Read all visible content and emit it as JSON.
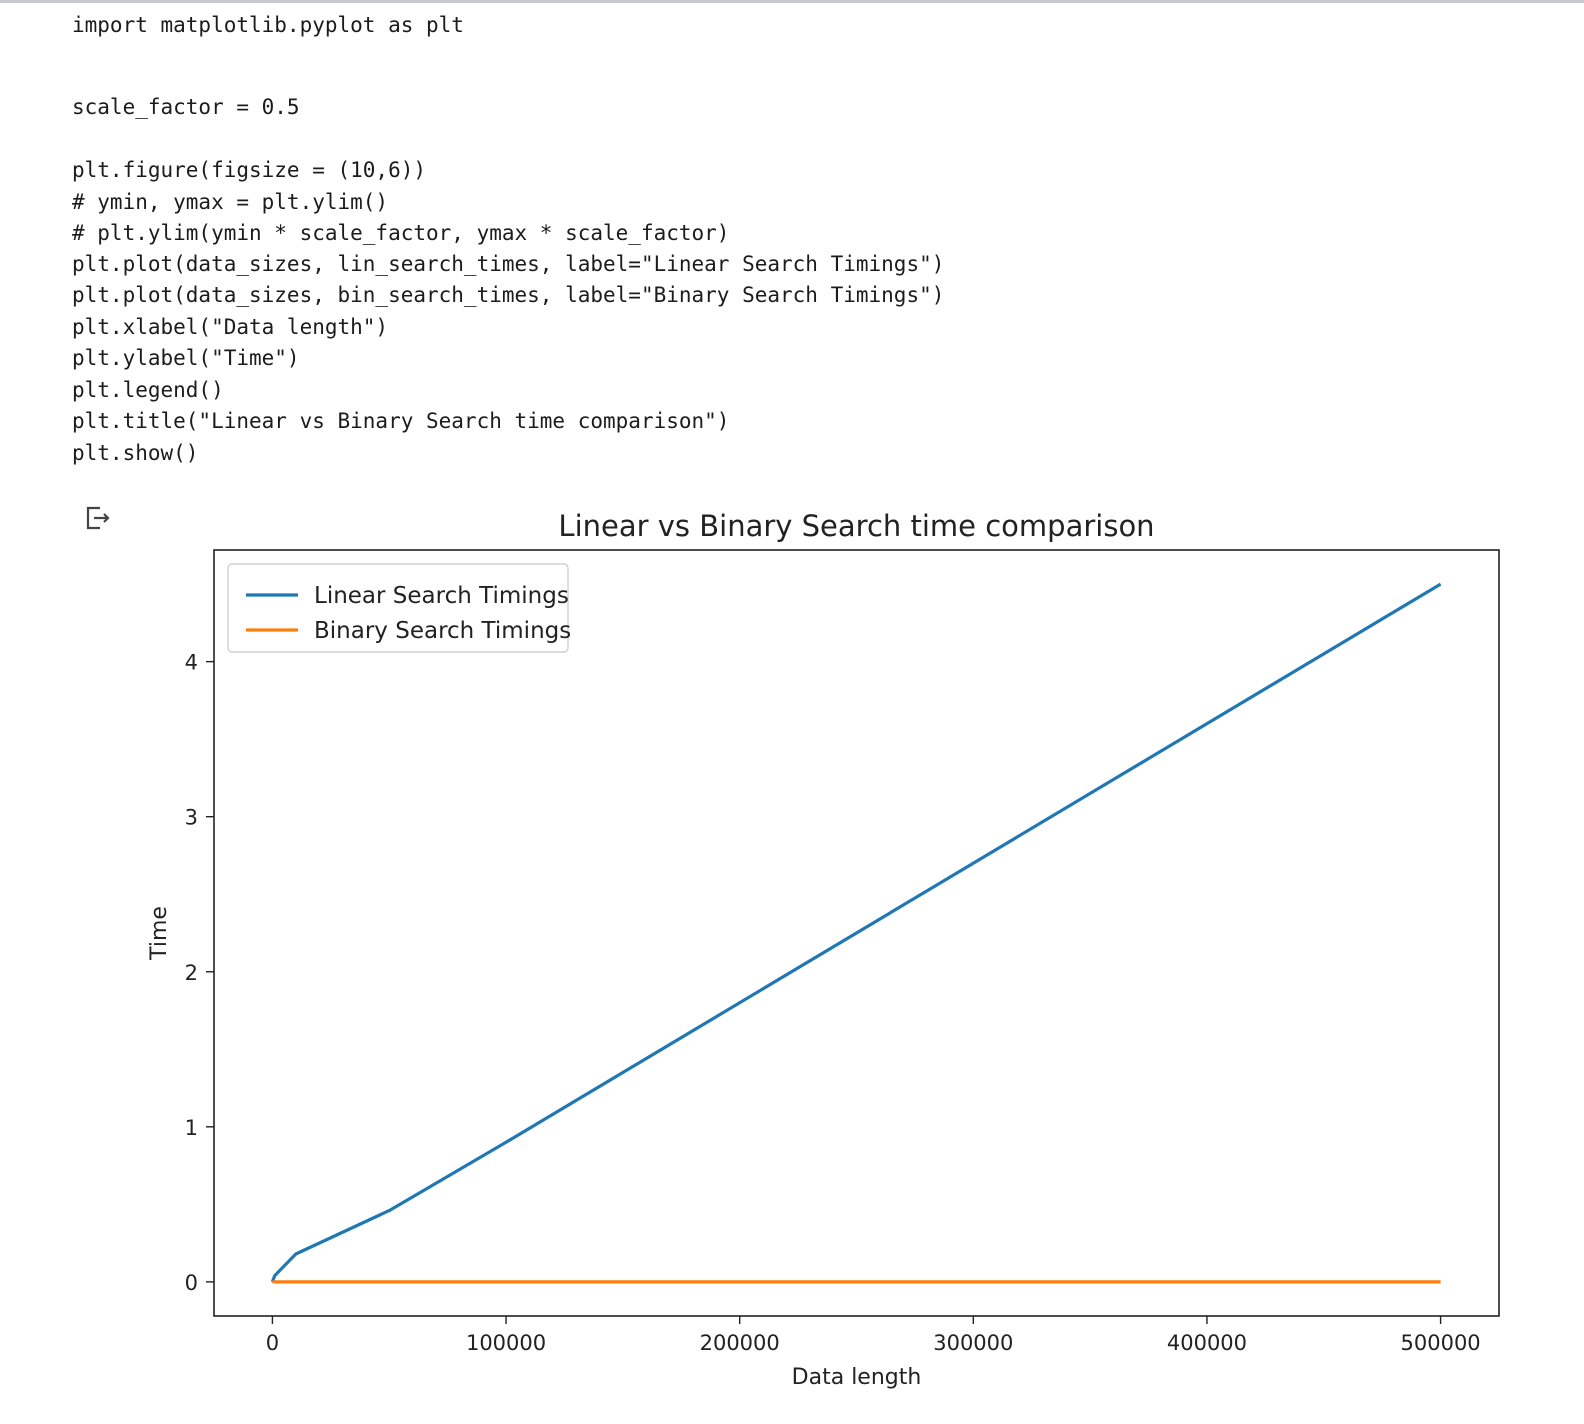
{
  "notebook": {
    "code_lines": [
      "import matplotlib.pyplot as plt",
      "",
      "",
      "scale_factor = 0.5",
      "",
      "plt.figure(figsize = (10,6))",
      "# ymin, ymax = plt.ylim()",
      "# plt.ylim(ymin * scale_factor, ymax * scale_factor)",
      "plt.plot(data_sizes, lin_search_times, label=\"Linear Search Timings\")",
      "plt.plot(data_sizes, bin_search_times, label=\"Binary Search Timings\")",
      "plt.xlabel(\"Data length\")",
      "plt.ylabel(\"Time\")",
      "plt.legend()",
      "plt.title(\"Linear vs Binary Search time comparison\")",
      "plt.show()"
    ],
    "output_icon": "output-redirect-icon"
  },
  "chart_data": {
    "type": "line",
    "title": "Linear vs Binary Search time comparison",
    "xlabel": "Data length",
    "ylabel": "Time",
    "xlim": [
      -25000,
      525000
    ],
    "ylim": [
      -0.22,
      4.72
    ],
    "xticks": [
      0,
      100000,
      200000,
      300000,
      400000,
      500000
    ],
    "xtick_labels": [
      "0",
      "100000",
      "200000",
      "300000",
      "400000",
      "500000"
    ],
    "yticks": [
      0,
      1,
      2,
      3,
      4
    ],
    "ytick_labels": [
      "0",
      "1",
      "2",
      "3",
      "4"
    ],
    "legend_position": "top-left",
    "grid": false,
    "series": [
      {
        "name": "Linear Search Timings",
        "color": "#1f77b4",
        "x": [
          0,
          1000,
          10000,
          50000,
          100000,
          500000
        ],
        "y": [
          0.0,
          0.04,
          0.18,
          0.46,
          0.9,
          4.5
        ]
      },
      {
        "name": "Binary Search Timings",
        "color": "#ff7f0e",
        "x": [
          0,
          1000,
          10000,
          50000,
          100000,
          500000
        ],
        "y": [
          0.0,
          0.0,
          0.0,
          0.0,
          0.0,
          0.0
        ]
      }
    ]
  }
}
